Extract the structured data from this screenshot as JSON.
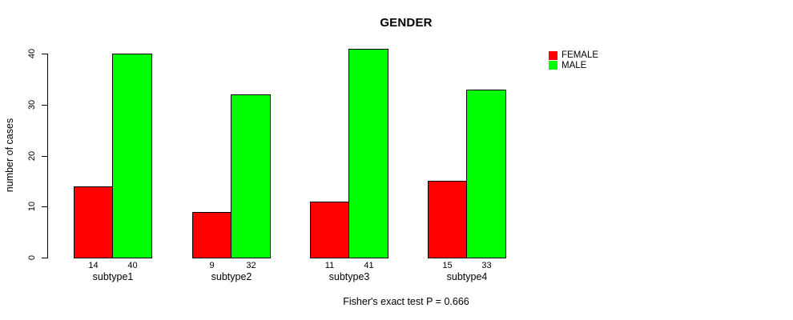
{
  "chart_data": {
    "type": "bar",
    "title": "GENDER",
    "ylabel": "number of cases",
    "xlabel": "",
    "categories": [
      "subtype1",
      "subtype2",
      "subtype3",
      "subtype4"
    ],
    "series": [
      {
        "name": "FEMALE",
        "color": "#FF0000",
        "values": [
          14,
          9,
          11,
          15
        ]
      },
      {
        "name": "MALE",
        "color": "#00FF00",
        "values": [
          40,
          32,
          41,
          33
        ]
      }
    ],
    "yticks": [
      0,
      10,
      20,
      30,
      40
    ],
    "ylim": [
      0,
      41.6
    ],
    "grid": false,
    "bar_value_labels_shown": true,
    "legend_position": "top-right",
    "caption": "Fisher's exact test P = 0.666",
    "background_color": "#FFFFFF",
    "text_color": "#000000",
    "bar_border_color": "#000000"
  }
}
